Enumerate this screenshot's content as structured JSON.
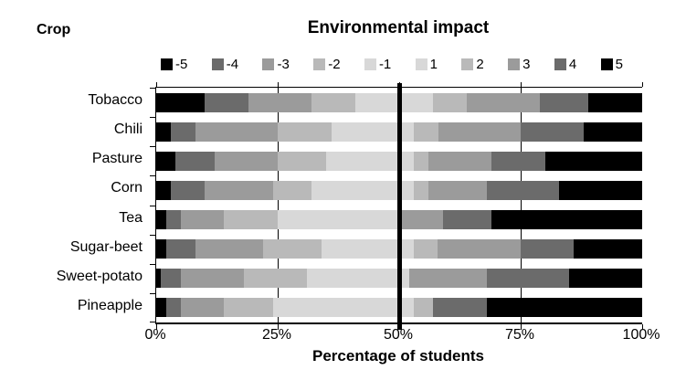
{
  "header": {
    "row_axis_label": "Crop",
    "title": "Environmental impact"
  },
  "chart_data": {
    "type": "bar",
    "orientation": "horizontal",
    "stacked": true,
    "title": "Environmental impact",
    "row_axis_label": "Crop",
    "xlabel": "Percentage of students",
    "xlim": [
      0,
      100
    ],
    "x_ticks": [
      {
        "label": "0%",
        "value": 0
      },
      {
        "label": "25%",
        "value": 25
      },
      {
        "label": "50%",
        "value": 50
      },
      {
        "label": "75%",
        "value": 75
      },
      {
        "label": "100%",
        "value": 100
      }
    ],
    "gridlines_x": [
      25,
      75
    ],
    "reference_line_x": 50,
    "grid": true,
    "legend_position": "top",
    "categories": [
      "Tobacco",
      "Chili",
      "Pasture",
      "Corn",
      "Tea",
      "Sugar-beet",
      "Sweet-potato",
      "Pineapple"
    ],
    "series": [
      {
        "name": "-5",
        "color": "#000000",
        "values": [
          10,
          3,
          4,
          3,
          2,
          2,
          1,
          2
        ]
      },
      {
        "name": "-4",
        "color": "#6b6b6b",
        "values": [
          9,
          5,
          8,
          7,
          3,
          6,
          4,
          3
        ]
      },
      {
        "name": "-3",
        "color": "#9b9b9b",
        "values": [
          13,
          17,
          13,
          14,
          9,
          14,
          13,
          9
        ]
      },
      {
        "name": "-2",
        "color": "#b9b9b9",
        "values": [
          9,
          11,
          10,
          8,
          11,
          12,
          13,
          10
        ]
      },
      {
        "name": "-1",
        "color": "#d8d8d8",
        "values": [
          9,
          14,
          15,
          18,
          25,
          16,
          19,
          26
        ]
      },
      {
        "name": "1",
        "color": "#d8d8d8",
        "values": [
          7,
          3,
          3,
          3,
          0,
          3,
          2,
          3
        ]
      },
      {
        "name": "2",
        "color": "#b9b9b9",
        "values": [
          7,
          5,
          3,
          3,
          0,
          5,
          0,
          4
        ]
      },
      {
        "name": "3",
        "color": "#9b9b9b",
        "values": [
          15,
          17,
          13,
          12,
          9,
          17,
          16,
          0
        ]
      },
      {
        "name": "4",
        "color": "#6b6b6b",
        "values": [
          10,
          13,
          11,
          15,
          10,
          11,
          17,
          11
        ]
      },
      {
        "name": "5",
        "color": "#000000",
        "values": [
          11,
          12,
          20,
          17,
          31,
          14,
          15,
          32
        ]
      }
    ]
  },
  "colors": {
    "background": "#ffffff",
    "axis": "#000000"
  }
}
